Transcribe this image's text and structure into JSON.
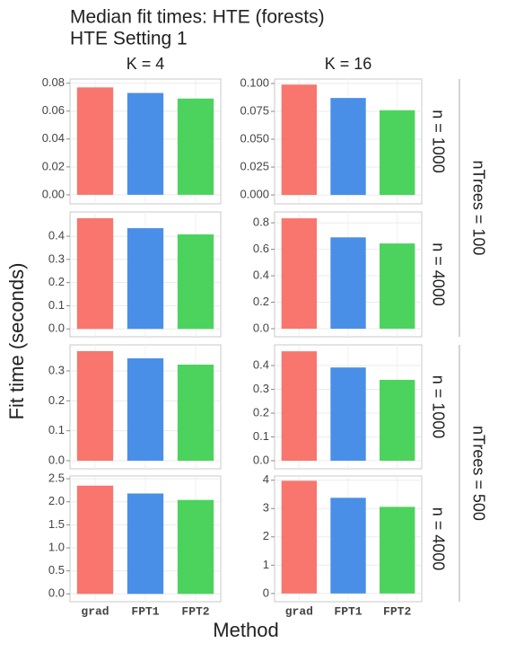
{
  "figure": {
    "title": "Median fit times: HTE (forests)",
    "subtitle": "HTE Setting 1",
    "x_label": "Method",
    "y_label": "Fit time (seconds)",
    "categories": [
      "grad",
      "FPT1",
      "FPT2"
    ],
    "colors": [
      "#F8766D",
      "#4A8FE7",
      "#4CD35E"
    ],
    "col_labels": [
      "K = 4",
      "K = 16"
    ],
    "row_labels": [
      "n = 1000",
      "n = 4000",
      "n = 1000",
      "n = 4000"
    ],
    "outer_labels": [
      "nTrees = 100",
      "nTrees = 500"
    ]
  },
  "chart_data": [
    {
      "type": "bar",
      "values": [
        0.077,
        0.073,
        0.069
      ],
      "ylim": [
        -0.0065,
        0.083
      ],
      "yticks": [
        {
          "value": 0,
          "label": "0.00"
        },
        0.02,
        0.04,
        0.06,
        0.08
      ]
    },
    {
      "type": "bar",
      "values": [
        0.099,
        0.087,
        0.076
      ],
      "ylim": [
        -0.008,
        0.104
      ],
      "yticks": [
        {
          "value": 0,
          "label": "0.000"
        },
        0.025,
        {
          "value": 0.05,
          "label": "0.050"
        },
        0.075,
        {
          "value": 0.1,
          "label": "0.100"
        }
      ]
    },
    {
      "type": "bar",
      "values": [
        0.478,
        0.435,
        0.408
      ],
      "ylim": [
        -0.034,
        0.505
      ],
      "yticks": [
        {
          "value": 0,
          "label": "0.0"
        },
        0.1,
        0.2,
        0.3,
        0.4
      ]
    },
    {
      "type": "bar",
      "values": [
        0.834,
        0.69,
        0.644
      ],
      "ylim": [
        -0.061,
        0.882
      ],
      "yticks": [
        {
          "value": 0,
          "label": "0.0"
        },
        0.2,
        0.4,
        0.6,
        0.8
      ]
    },
    {
      "type": "bar",
      "values": [
        0.366,
        0.342,
        0.321
      ],
      "ylim": [
        -0.027,
        0.387
      ],
      "yticks": [
        {
          "value": 0,
          "label": "0.0"
        },
        0.1,
        0.2,
        0.3
      ]
    },
    {
      "type": "bar",
      "values": [
        0.46,
        0.392,
        0.34
      ],
      "ylim": [
        -0.034,
        0.487
      ],
      "yticks": [
        {
          "value": 0,
          "label": "0.0"
        },
        0.1,
        0.2,
        0.3,
        0.4
      ]
    },
    {
      "type": "bar",
      "values": [
        2.35,
        2.18,
        2.04
      ],
      "ylim": [
        -0.17,
        2.56
      ],
      "yticks": [
        {
          "value": 0,
          "label": "0.0"
        },
        0.5,
        {
          "value": 1,
          "label": "1.0"
        },
        1.5,
        {
          "value": 2,
          "label": "2.0"
        },
        2.5
      ]
    },
    {
      "type": "bar",
      "values": [
        3.98,
        3.38,
        3.06
      ],
      "ylim": [
        -0.29,
        4.15
      ],
      "yticks": [
        0,
        1,
        2,
        3,
        4
      ]
    }
  ]
}
